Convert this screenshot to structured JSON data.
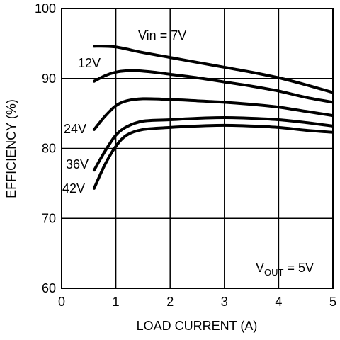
{
  "chart_data": {
    "type": "line",
    "xlabel": "LOAD CURRENT (A)",
    "ylabel": "EFFICIENCY (%)",
    "xlim": [
      0,
      5
    ],
    "ylim": [
      60,
      100
    ],
    "x_ticks": [
      "0",
      "1",
      "2",
      "3",
      "4",
      "5"
    ],
    "y_ticks": [
      "60",
      "70",
      "80",
      "90",
      "100"
    ],
    "grid": true,
    "line_color": "#000000",
    "series": [
      {
        "name": "Vin = 7V",
        "x": [
          0.6,
          0.8,
          1.0,
          1.2,
          1.5,
          2.0,
          2.5,
          3.0,
          3.5,
          4.0,
          4.5,
          5.0
        ],
        "y": [
          94.6,
          94.6,
          94.5,
          94.2,
          93.7,
          93.0,
          92.3,
          91.6,
          90.9,
          90.1,
          89.1,
          88.0
        ]
      },
      {
        "name": "12V",
        "x": [
          0.6,
          0.8,
          1.0,
          1.2,
          1.4,
          1.7,
          2.0,
          2.5,
          3.0,
          3.5,
          4.0,
          4.5,
          5.0
        ],
        "y": [
          89.6,
          90.4,
          90.9,
          91.1,
          91.1,
          90.9,
          90.6,
          90.1,
          89.5,
          88.9,
          88.2,
          87.3,
          86.6
        ]
      },
      {
        "name": "24V",
        "x": [
          0.6,
          0.8,
          1.0,
          1.2,
          1.5,
          2.0,
          2.5,
          3.0,
          3.5,
          4.0,
          4.5,
          5.0
        ],
        "y": [
          82.7,
          84.6,
          86.1,
          86.8,
          87.1,
          87.0,
          86.8,
          86.6,
          86.3,
          85.9,
          85.3,
          84.7
        ]
      },
      {
        "name": "36V",
        "x": [
          0.6,
          0.8,
          1.0,
          1.2,
          1.5,
          2.0,
          2.5,
          3.0,
          3.5,
          4.0,
          4.5,
          5.0
        ],
        "y": [
          76.9,
          79.6,
          81.9,
          83.1,
          83.9,
          84.1,
          84.3,
          84.4,
          84.3,
          84.1,
          83.7,
          83.2
        ]
      },
      {
        "name": "42V",
        "x": [
          0.6,
          0.8,
          1.0,
          1.2,
          1.5,
          2.0,
          2.5,
          3.0,
          3.5,
          4.0,
          4.5,
          5.0
        ],
        "y": [
          74.3,
          77.7,
          80.3,
          81.9,
          82.7,
          83.0,
          83.2,
          83.3,
          83.2,
          83.0,
          82.6,
          82.3
        ]
      }
    ],
    "annotations": {
      "vout_main": "V",
      "vout_sub": "OUT",
      "vout_value": " = 5V"
    }
  }
}
